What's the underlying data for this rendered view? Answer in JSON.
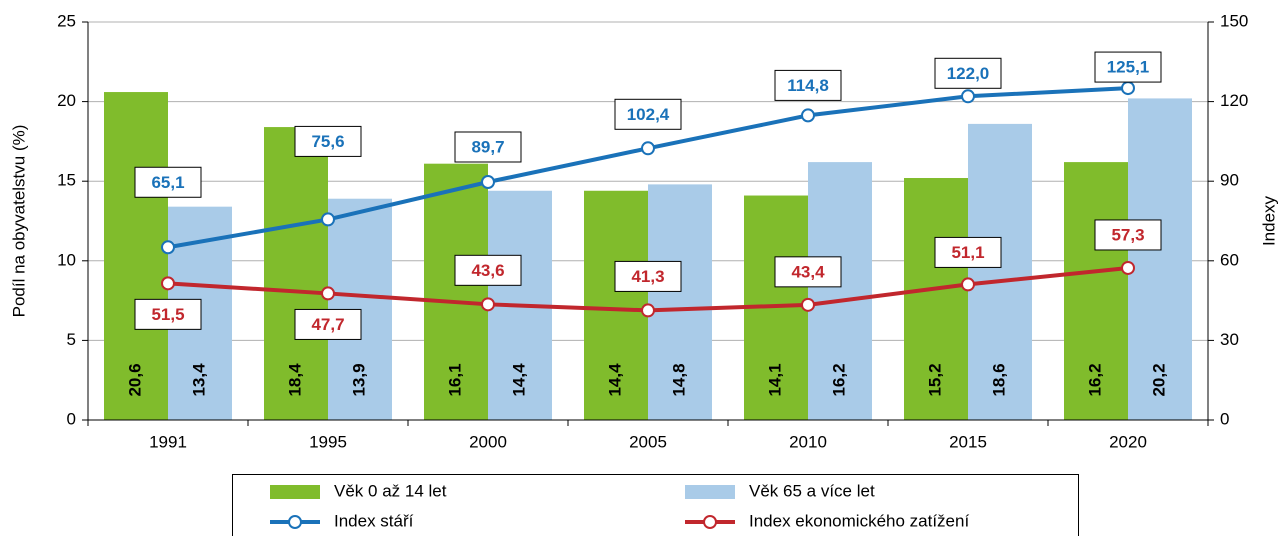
{
  "chart_data": {
    "type": "bar_line",
    "categories": [
      "1991",
      "1995",
      "2000",
      "2005",
      "2010",
      "2015",
      "2020"
    ],
    "ylabel": "Podíl na obyvatelstvu (%)",
    "y2label": "Indexy",
    "ylim": [
      0,
      25
    ],
    "yticks": [
      0,
      5,
      10,
      15,
      20,
      25
    ],
    "y2lim": [
      0,
      150
    ],
    "y2ticks": [
      0,
      30,
      60,
      90,
      120,
      150
    ],
    "grid": true,
    "series": [
      {
        "name": "Věk 0 až 14 let",
        "type": "bar",
        "color": "#80bc2c",
        "values": [
          20.6,
          18.4,
          16.1,
          14.4,
          14.1,
          15.2,
          16.2
        ],
        "value_labels": [
          "20,6",
          "18,4",
          "16,1",
          "14,4",
          "14,1",
          "15,2",
          "16,2"
        ]
      },
      {
        "name": "Věk 65 a více let",
        "type": "bar",
        "color": "#a9cbe8",
        "values": [
          13.4,
          13.9,
          14.4,
          14.8,
          16.2,
          18.6,
          20.2
        ],
        "value_labels": [
          "13,4",
          "13,9",
          "14,4",
          "14,8",
          "16,2",
          "18,6",
          "20,2"
        ]
      },
      {
        "name": "Index stáří",
        "type": "line",
        "axis": "y2",
        "color": "#1a72b9",
        "values": [
          65.1,
          75.6,
          89.7,
          102.4,
          114.8,
          122.0,
          125.1
        ],
        "value_labels": [
          "65,1",
          "75,6",
          "89,7",
          "102,4",
          "114,8",
          "122,0",
          "125,1"
        ]
      },
      {
        "name": "Index ekonomického zatížení",
        "type": "line",
        "axis": "y2",
        "color": "#c1272d",
        "values": [
          51.5,
          47.7,
          43.6,
          41.3,
          43.4,
          51.1,
          57.3
        ],
        "value_labels": [
          "51,5",
          "47,7",
          "43,6",
          "41,3",
          "43,4",
          "51,1",
          "57,3"
        ]
      }
    ]
  }
}
